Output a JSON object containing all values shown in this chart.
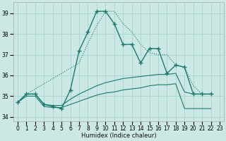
{
  "xlabel": "Humidex (Indice chaleur)",
  "bg_color": "#cce8e4",
  "grid_color": "#aad4ce",
  "line_color": "#1a7a6e",
  "xlim": [
    -0.5,
    23.5
  ],
  "ylim": [
    33.8,
    39.55
  ],
  "xticks": [
    0,
    1,
    2,
    3,
    4,
    5,
    6,
    7,
    8,
    9,
    10,
    11,
    12,
    13,
    14,
    15,
    16,
    17,
    18,
    19,
    20,
    21,
    22,
    23
  ],
  "yticks": [
    34,
    35,
    36,
    37,
    38,
    39
  ],
  "main_line": [
    [
      0,
      34.7
    ],
    [
      1,
      35.1
    ],
    [
      2,
      35.1
    ],
    [
      3,
      34.6
    ],
    [
      4,
      34.5
    ],
    [
      5,
      34.4
    ],
    [
      6,
      35.3
    ],
    [
      7,
      37.2
    ],
    [
      8,
      38.1
    ],
    [
      9,
      39.1
    ],
    [
      10,
      39.1
    ],
    [
      11,
      38.5
    ],
    [
      12,
      37.5
    ],
    [
      13,
      37.5
    ],
    [
      14,
      36.6
    ],
    [
      15,
      37.3
    ],
    [
      16,
      37.3
    ],
    [
      17,
      36.1
    ],
    [
      18,
      36.5
    ],
    [
      19,
      36.4
    ],
    [
      20,
      35.1
    ],
    [
      21,
      35.1
    ],
    [
      22,
      35.1
    ]
  ],
  "dotted_line": [
    [
      0,
      34.7
    ],
    [
      1,
      35.1
    ],
    [
      2,
      35.35
    ],
    [
      3,
      35.6
    ],
    [
      4,
      35.85
    ],
    [
      5,
      36.1
    ],
    [
      6,
      36.35
    ],
    [
      7,
      36.6
    ],
    [
      8,
      37.55
    ],
    [
      9,
      38.4
    ],
    [
      10,
      39.1
    ],
    [
      11,
      39.1
    ],
    [
      12,
      38.5
    ],
    [
      13,
      38.1
    ],
    [
      14,
      37.5
    ],
    [
      15,
      37.1
    ],
    [
      16,
      37.0
    ],
    [
      17,
      37.0
    ],
    [
      18,
      36.5
    ],
    [
      19,
      36.4
    ],
    [
      20,
      35.5
    ],
    [
      21,
      35.1
    ],
    [
      22,
      35.1
    ]
  ],
  "upper_band": [
    [
      0,
      34.7
    ],
    [
      1,
      35.1
    ],
    [
      2,
      35.1
    ],
    [
      3,
      34.6
    ],
    [
      4,
      34.55
    ],
    [
      5,
      34.55
    ],
    [
      6,
      34.85
    ],
    [
      7,
      35.1
    ],
    [
      8,
      35.3
    ],
    [
      9,
      35.5
    ],
    [
      10,
      35.65
    ],
    [
      11,
      35.75
    ],
    [
      12,
      35.85
    ],
    [
      13,
      35.9
    ],
    [
      14,
      35.95
    ],
    [
      15,
      36.0
    ],
    [
      16,
      36.05
    ],
    [
      17,
      36.05
    ],
    [
      18,
      36.1
    ],
    [
      19,
      35.2
    ],
    [
      20,
      35.1
    ],
    [
      21,
      35.1
    ],
    [
      22,
      35.1
    ]
  ],
  "lower_band": [
    [
      0,
      34.7
    ],
    [
      1,
      35.0
    ],
    [
      2,
      35.0
    ],
    [
      3,
      34.5
    ],
    [
      4,
      34.45
    ],
    [
      5,
      34.45
    ],
    [
      6,
      34.6
    ],
    [
      7,
      34.75
    ],
    [
      8,
      34.9
    ],
    [
      9,
      35.05
    ],
    [
      10,
      35.15
    ],
    [
      11,
      35.2
    ],
    [
      12,
      35.3
    ],
    [
      13,
      35.35
    ],
    [
      14,
      35.4
    ],
    [
      15,
      35.5
    ],
    [
      16,
      35.55
    ],
    [
      17,
      35.55
    ],
    [
      18,
      35.6
    ],
    [
      19,
      34.4
    ],
    [
      20,
      34.4
    ],
    [
      21,
      34.4
    ],
    [
      22,
      34.4
    ]
  ]
}
